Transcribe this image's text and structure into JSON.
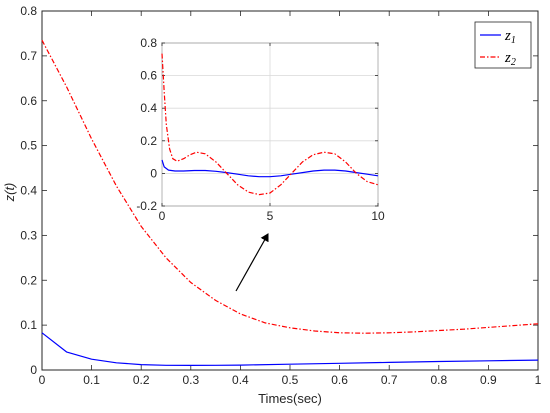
{
  "chart_data": [
    {
      "type": "line",
      "xlabel": "Times(sec)",
      "ylabel": "z(t)",
      "xlim": [
        0,
        1
      ],
      "ylim": [
        0,
        0.8
      ],
      "xticks": [
        "0",
        "0.1",
        "0.2",
        "0.3",
        "0.4",
        "0.5",
        "0.6",
        "0.7",
        "0.8",
        "0.9",
        "1"
      ],
      "yticks": [
        "0",
        "0.1",
        "0.2",
        "0.3",
        "0.4",
        "0.5",
        "0.6",
        "0.7",
        "0.8"
      ],
      "grid": false,
      "legend_position": "top-right",
      "series": [
        {
          "name": "z1",
          "name_base": "z",
          "name_sub": "1",
          "color": "#0000ff",
          "style": "solid",
          "x": [
            0,
            0.05,
            0.1,
            0.15,
            0.2,
            0.25,
            0.3,
            0.35,
            0.4,
            0.5,
            0.6,
            0.7,
            0.8,
            0.9,
            1.0
          ],
          "y": [
            0.083,
            0.04,
            0.024,
            0.016,
            0.012,
            0.0105,
            0.0102,
            0.0105,
            0.011,
            0.013,
            0.015,
            0.017,
            0.019,
            0.0205,
            0.022
          ]
        },
        {
          "name": "z2",
          "name_base": "z",
          "name_sub": "2",
          "color": "#ff0000",
          "style": "dashdot",
          "x": [
            0,
            0.05,
            0.1,
            0.15,
            0.2,
            0.25,
            0.3,
            0.35,
            0.4,
            0.45,
            0.5,
            0.55,
            0.6,
            0.65,
            0.7,
            0.75,
            0.8,
            0.85,
            0.9,
            0.95,
            1.0
          ],
          "y": [
            0.735,
            0.63,
            0.515,
            0.41,
            0.32,
            0.25,
            0.195,
            0.155,
            0.125,
            0.105,
            0.094,
            0.087,
            0.083,
            0.082,
            0.083,
            0.085,
            0.088,
            0.091,
            0.095,
            0.099,
            0.103
          ]
        }
      ]
    },
    {
      "type": "line",
      "inset": true,
      "xlim": [
        0,
        10
      ],
      "ylim": [
        -0.2,
        0.8
      ],
      "xticks": [
        "0",
        "5",
        "10"
      ],
      "yticks": [
        "-0.2",
        "0",
        "0.2",
        "0.4",
        "0.6",
        "0.8"
      ],
      "grid": true,
      "series": [
        {
          "name": "z1",
          "color": "#0000ff",
          "style": "solid",
          "x": [
            0,
            0.1,
            0.3,
            0.6,
            1,
            1.5,
            2,
            2.5,
            3,
            3.5,
            4,
            4.5,
            5,
            5.5,
            6,
            6.5,
            7,
            7.5,
            8,
            8.5,
            9,
            9.5,
            10
          ],
          "y": [
            0.083,
            0.04,
            0.02,
            0.015,
            0.015,
            0.018,
            0.018,
            0.013,
            0.005,
            -0.005,
            -0.015,
            -0.02,
            -0.02,
            -0.015,
            -0.005,
            0.005,
            0.015,
            0.02,
            0.02,
            0.015,
            0.005,
            -0.005,
            -0.015
          ]
        },
        {
          "name": "z2",
          "color": "#ff0000",
          "style": "dashdot",
          "x": [
            0,
            0.1,
            0.2,
            0.35,
            0.5,
            0.7,
            1,
            1.3,
            1.6,
            2,
            2.5,
            3,
            3.5,
            4,
            4.5,
            5,
            5.5,
            6,
            6.5,
            7,
            7.5,
            8,
            8.5,
            9,
            9.5,
            10
          ],
          "y": [
            0.735,
            0.5,
            0.3,
            0.15,
            0.09,
            0.075,
            0.09,
            0.115,
            0.13,
            0.12,
            0.07,
            0.0,
            -0.07,
            -0.115,
            -0.13,
            -0.12,
            -0.07,
            0.0,
            0.07,
            0.115,
            0.13,
            0.12,
            0.07,
            0.0,
            -0.05,
            -0.07
          ]
        }
      ]
    }
  ]
}
